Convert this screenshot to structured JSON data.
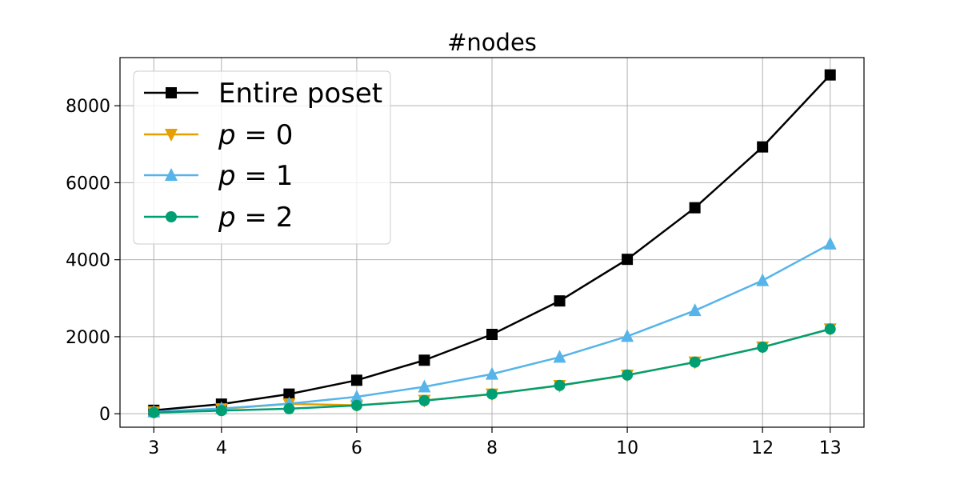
{
  "chart_data": {
    "type": "line",
    "title": "#nodes",
    "xlabel": "",
    "ylabel": "",
    "xlim": [
      2.5,
      13.5
    ],
    "ylim": [
      -350,
      9250
    ],
    "x_ticks": [
      3,
      4,
      6,
      8,
      10,
      12,
      13
    ],
    "y_ticks": [
      0,
      2000,
      4000,
      6000,
      8000
    ],
    "grid": true,
    "legend_position": "top-left",
    "x": [
      3,
      4,
      5,
      6,
      7,
      8,
      9,
      10,
      11,
      12,
      13
    ],
    "series": [
      {
        "name": "Entire poset",
        "legend_math": false,
        "legend_var": "",
        "legend_value": "",
        "color": "#000000",
        "marker": "square",
        "values": [
          90,
          250,
          510,
          870,
          1390,
          2060,
          2930,
          4010,
          5350,
          6930,
          8800
        ]
      },
      {
        "name": "p = 0",
        "legend_math": true,
        "legend_var": "p",
        "legend_value": "0",
        "color": "#E69F00",
        "marker": "triangle-down",
        "values": [
          45,
          125,
          255,
          220,
          345,
          510,
          730,
          1000,
          1340,
          1730,
          2200
        ]
      },
      {
        "name": "p = 1",
        "legend_math": true,
        "legend_var": "p",
        "legend_value": "1",
        "color": "#56B4E9",
        "marker": "triangle-up",
        "values": [
          50,
          135,
          260,
          440,
          700,
          1030,
          1470,
          2010,
          2680,
          3460,
          4410
        ]
      },
      {
        "name": "p = 2",
        "legend_math": true,
        "legend_var": "p",
        "legend_value": "2",
        "color": "#009E73",
        "marker": "circle",
        "values": [
          30,
          80,
          130,
          215,
          340,
          510,
          735,
          1005,
          1340,
          1730,
          2200
        ]
      }
    ]
  }
}
